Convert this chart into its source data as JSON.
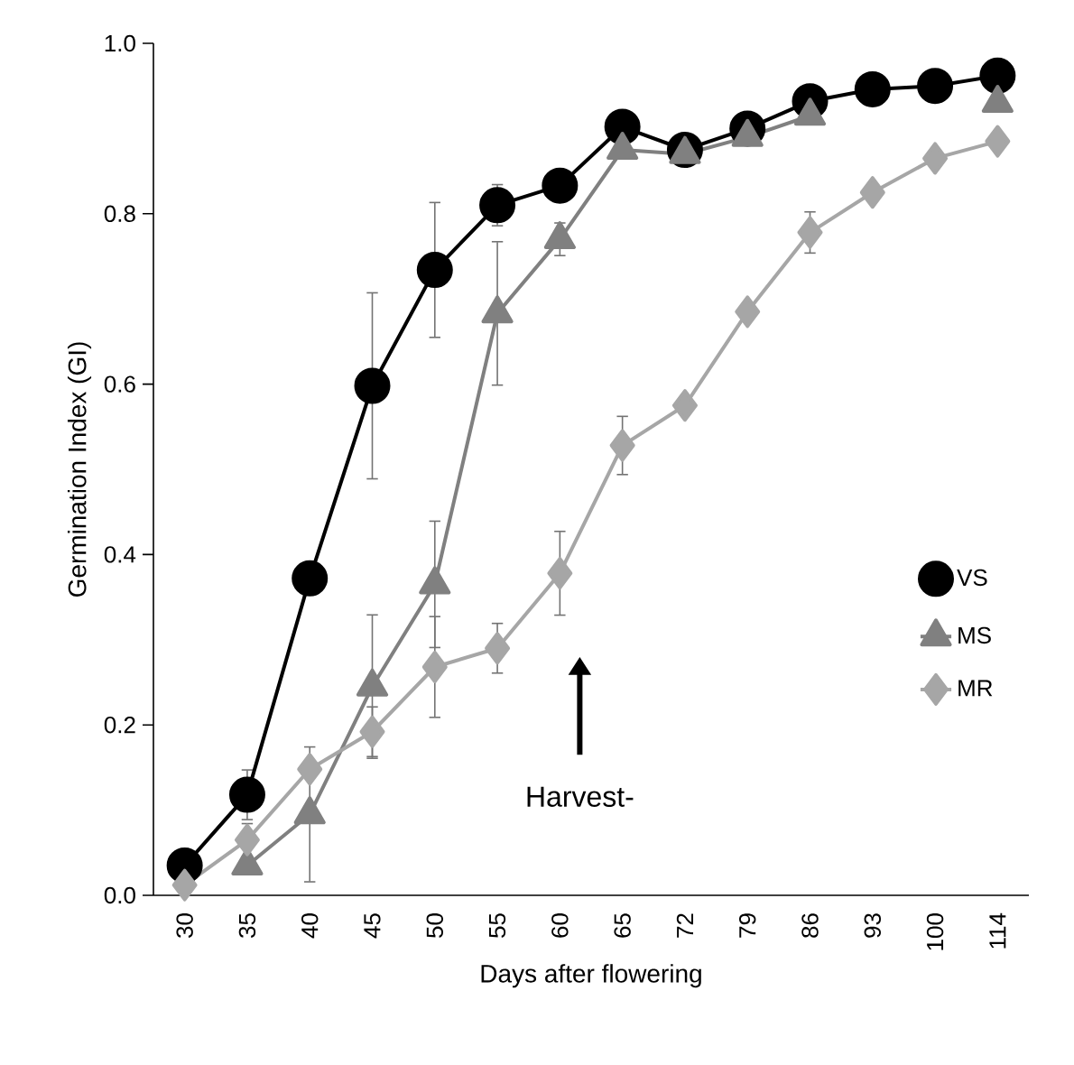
{
  "chart_data": {
    "type": "line",
    "xlabel": "Days after flowering",
    "ylabel": "Germination Index (GI)",
    "categories": [
      "30",
      "35",
      "40",
      "45",
      "50",
      "55",
      "60",
      "65",
      "72",
      "79",
      "86",
      "93",
      "100",
      "114"
    ],
    "series": [
      {
        "name": "VS",
        "color": "#000000",
        "marker": "circle",
        "values": [
          0.035,
          0.118,
          0.372,
          0.598,
          0.734,
          0.81,
          0.833,
          0.902,
          0.875,
          0.9,
          0.932,
          0.946,
          0.95,
          0.962
        ],
        "errors": [
          null,
          0.03,
          0.02,
          0.11,
          0.08,
          0.025,
          0.02,
          null,
          null,
          null,
          null,
          null,
          null,
          null
        ]
      },
      {
        "name": "MS",
        "color": "#808080",
        "marker": "triangle",
        "values": [
          null,
          0.035,
          0.095,
          0.245,
          0.365,
          0.683,
          0.77,
          0.875,
          0.87,
          0.89,
          0.915,
          null,
          null,
          0.93
        ],
        "errors": [
          null,
          null,
          0.08,
          0.085,
          0.075,
          0.085,
          0.02,
          null,
          null,
          null,
          null,
          null,
          null,
          null
        ]
      },
      {
        "name": "MR",
        "color": "#a6a6a6",
        "marker": "diamond",
        "values": [
          0.012,
          0.065,
          0.148,
          0.192,
          0.268,
          0.29,
          0.378,
          0.528,
          0.575,
          0.685,
          0.778,
          0.825,
          0.865,
          0.885
        ],
        "errors": [
          null,
          0.02,
          null,
          0.03,
          0.06,
          0.03,
          0.05,
          0.035,
          null,
          null,
          0.025,
          null,
          null,
          null
        ]
      }
    ],
    "ylim": [
      0,
      1
    ],
    "yticks": [
      {
        "value": 0,
        "label": "0.0"
      },
      {
        "value": 0.2,
        "label": "0.2"
      },
      {
        "value": 0.4,
        "label": "0.4"
      },
      {
        "value": 0.6,
        "label": "0.6"
      },
      {
        "value": 0.8,
        "label": "0.8"
      },
      {
        "value": 1,
        "label": "1.0"
      }
    ],
    "grid": false,
    "legend": "right",
    "line_style": "solid",
    "annotations": [
      "Harvest-"
    ]
  }
}
